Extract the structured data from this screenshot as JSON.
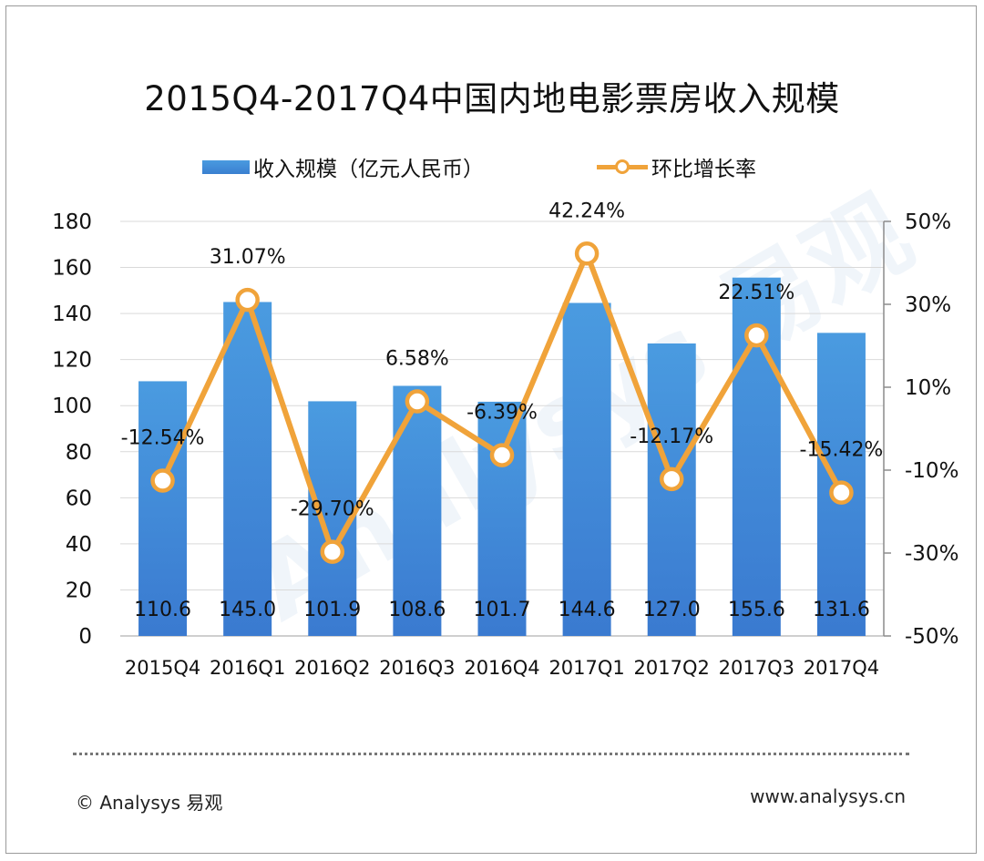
{
  "footer": {
    "copyright": "© Analysys 易观",
    "website": "www.analysys.cn"
  },
  "colors": {
    "bar_top": "#4a9be0",
    "bar_bottom": "#3a7fd0",
    "line": "#f0a33a",
    "grid": "#d9d9d9"
  },
  "chart_data": {
    "type": "bar",
    "title": "2015Q4-2017Q4中国内地电影票房收入规模",
    "categories": [
      "2015Q4",
      "2016Q1",
      "2016Q2",
      "2016Q3",
      "2016Q4",
      "2017Q1",
      "2017Q2",
      "2017Q3",
      "2017Q4"
    ],
    "series": [
      {
        "name": "收入规模（亿元人民币）",
        "type": "bar",
        "axis": "left",
        "values": [
          110.6,
          145.0,
          101.9,
          108.6,
          101.7,
          144.6,
          127.0,
          155.6,
          131.6
        ],
        "labels": [
          "110.6",
          "145.0",
          "101.9",
          "108.6",
          "101.7",
          "144.6",
          "127.0",
          "155.6",
          "131.6"
        ]
      },
      {
        "name": "环比增长率",
        "type": "line",
        "axis": "right",
        "values": [
          -12.54,
          31.07,
          -29.7,
          6.58,
          -6.39,
          42.24,
          -12.17,
          22.51,
          -15.42
        ],
        "labels": [
          "-12.54%",
          "31.07%",
          "-29.70%",
          "6.58%",
          "-6.39%",
          "42.24%",
          "-12.17%",
          "22.51%",
          "-15.42%"
        ]
      }
    ],
    "y_left": {
      "min": 0,
      "max": 180,
      "ticks": [
        "0",
        "20",
        "40",
        "60",
        "80",
        "100",
        "120",
        "140",
        "160",
        "180"
      ]
    },
    "y_right": {
      "min": -50,
      "max": 50,
      "ticks": [
        "-50%",
        "-30%",
        "-10%",
        "10%",
        "30%",
        "50%"
      ]
    },
    "legend_position": "top-center",
    "grid": true
  }
}
